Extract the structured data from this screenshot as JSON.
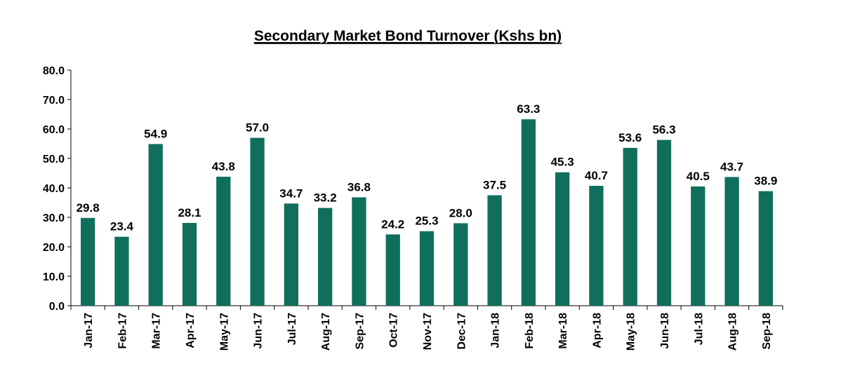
{
  "chart_data": {
    "type": "bar",
    "title": "Secondary Market Bond Turnover (Kshs bn)",
    "xlabel": "",
    "ylabel": "",
    "ylim": [
      0,
      80
    ],
    "yticks": [
      "0.0",
      "10.0",
      "20.0",
      "30.0",
      "40.0",
      "50.0",
      "60.0",
      "70.0",
      "80.0"
    ],
    "grid": false,
    "legend": "none",
    "bar_color": "#0f6f5c",
    "categories": [
      "Jan-17",
      "Feb-17",
      "Mar-17",
      "Apr-17",
      "May-17",
      "Jun-17",
      "Jul-17",
      "Aug-17",
      "Sep-17",
      "Oct-17",
      "Nov-17",
      "Dec-17",
      "Jan-18",
      "Feb-18",
      "Mar-18",
      "Apr-18",
      "May-18",
      "Jun-18",
      "Jul-18",
      "Aug-18",
      "Sep-18"
    ],
    "values": [
      29.8,
      23.4,
      54.9,
      28.1,
      43.8,
      57.0,
      34.7,
      33.2,
      36.8,
      24.2,
      25.3,
      28.0,
      37.5,
      63.3,
      45.3,
      40.7,
      53.6,
      56.3,
      40.5,
      43.7,
      38.9
    ],
    "data_labels": [
      "29.8",
      "23.4",
      "54.9",
      "28.1",
      "43.8",
      "57.0",
      "34.7",
      "33.2",
      "36.8",
      "24.2",
      "25.3",
      "28.0",
      "37.5",
      "63.3",
      "45.3",
      "40.7",
      "53.6",
      "56.3",
      "40.5",
      "43.7",
      "38.9"
    ]
  }
}
